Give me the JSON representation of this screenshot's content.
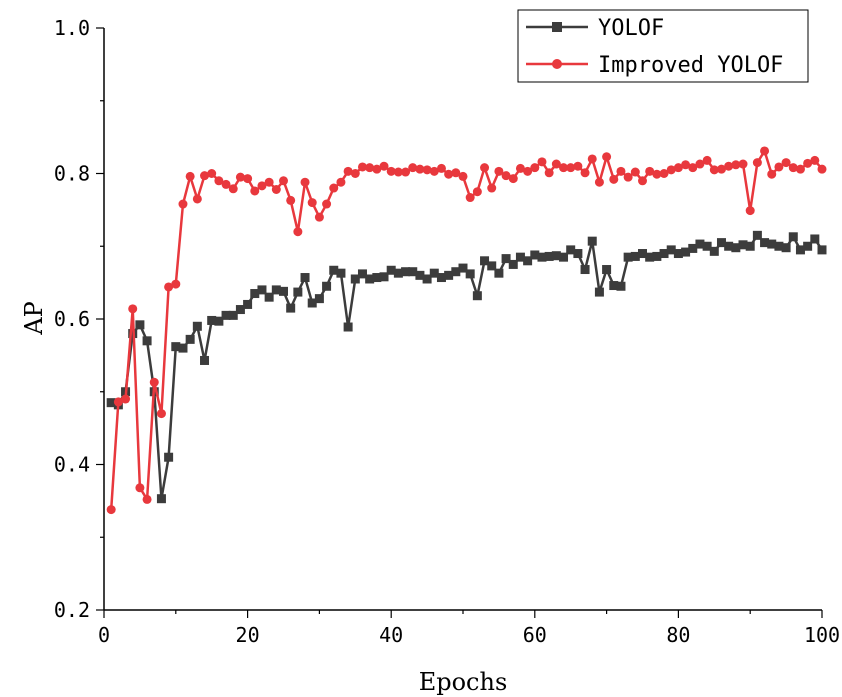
{
  "chart_data": {
    "type": "line",
    "title": "",
    "xlabel": "Epochs",
    "ylabel": "AP",
    "xlim": [
      0,
      100
    ],
    "ylim": [
      0.2,
      1.0
    ],
    "xticks": [
      0,
      20,
      40,
      60,
      80,
      100
    ],
    "xtick_labels": [
      "0",
      "20",
      "40",
      "60",
      "80",
      "100"
    ],
    "yticks": [
      0.2,
      0.4,
      0.6,
      0.8,
      1.0
    ],
    "ytick_labels": [
      "0.2",
      "0.4",
      "0.6",
      "0.8",
      "1.0"
    ],
    "grid": false,
    "legend_position": "top-right",
    "x": [
      1,
      2,
      3,
      4,
      5,
      6,
      7,
      8,
      9,
      10,
      11,
      12,
      13,
      14,
      15,
      16,
      17,
      18,
      19,
      20,
      21,
      22,
      23,
      24,
      25,
      26,
      27,
      28,
      29,
      30,
      31,
      32,
      33,
      34,
      35,
      36,
      37,
      38,
      39,
      40,
      41,
      42,
      43,
      44,
      45,
      46,
      47,
      48,
      49,
      50,
      51,
      52,
      53,
      54,
      55,
      56,
      57,
      58,
      59,
      60,
      61,
      62,
      63,
      64,
      65,
      66,
      67,
      68,
      69,
      70,
      71,
      72,
      73,
      74,
      75,
      76,
      77,
      78,
      79,
      80,
      81,
      82,
      83,
      84,
      85,
      86,
      87,
      88,
      89,
      90,
      91,
      92,
      93,
      94,
      95,
      96,
      97,
      98,
      99,
      100
    ],
    "series": [
      {
        "name": "YOLOF",
        "color": "#3c3c3c",
        "marker": "square",
        "values": [
          0.485,
          0.482,
          0.5,
          0.58,
          0.592,
          0.57,
          0.5,
          0.353,
          0.41,
          0.562,
          0.56,
          0.572,
          0.59,
          0.543,
          0.598,
          0.597,
          0.605,
          0.605,
          0.613,
          0.62,
          0.635,
          0.64,
          0.63,
          0.64,
          0.638,
          0.615,
          0.637,
          0.657,
          0.622,
          0.628,
          0.645,
          0.667,
          0.663,
          0.589,
          0.655,
          0.662,
          0.655,
          0.657,
          0.658,
          0.667,
          0.663,
          0.665,
          0.665,
          0.66,
          0.655,
          0.663,
          0.657,
          0.66,
          0.665,
          0.67,
          0.662,
          0.632,
          0.68,
          0.673,
          0.663,
          0.683,
          0.675,
          0.685,
          0.68,
          0.688,
          0.685,
          0.686,
          0.687,
          0.685,
          0.695,
          0.69,
          0.668,
          0.707,
          0.637,
          0.668,
          0.646,
          0.645,
          0.685,
          0.686,
          0.69,
          0.685,
          0.686,
          0.69,
          0.695,
          0.69,
          0.692,
          0.697,
          0.703,
          0.7,
          0.693,
          0.705,
          0.7,
          0.698,
          0.702,
          0.7,
          0.715,
          0.705,
          0.703,
          0.7,
          0.698,
          0.713,
          0.695,
          0.7,
          0.71,
          0.695
        ]
      },
      {
        "name": "Improved YOLOF",
        "color": "#e8383d",
        "marker": "circle",
        "values": [
          0.338,
          0.486,
          0.49,
          0.614,
          0.368,
          0.352,
          0.513,
          0.47,
          0.644,
          0.648,
          0.758,
          0.796,
          0.765,
          0.797,
          0.8,
          0.79,
          0.785,
          0.779,
          0.795,
          0.793,
          0.776,
          0.783,
          0.788,
          0.778,
          0.79,
          0.763,
          0.72,
          0.788,
          0.76,
          0.74,
          0.758,
          0.78,
          0.788,
          0.803,
          0.8,
          0.809,
          0.808,
          0.806,
          0.81,
          0.803,
          0.802,
          0.802,
          0.808,
          0.806,
          0.805,
          0.803,
          0.807,
          0.799,
          0.801,
          0.796,
          0.767,
          0.775,
          0.808,
          0.78,
          0.803,
          0.797,
          0.793,
          0.807,
          0.803,
          0.808,
          0.816,
          0.801,
          0.813,
          0.808,
          0.808,
          0.81,
          0.801,
          0.82,
          0.788,
          0.823,
          0.792,
          0.803,
          0.795,
          0.802,
          0.79,
          0.803,
          0.799,
          0.8,
          0.805,
          0.808,
          0.812,
          0.808,
          0.813,
          0.818,
          0.805,
          0.806,
          0.81,
          0.812,
          0.813,
          0.749,
          0.815,
          0.831,
          0.799,
          0.809,
          0.815,
          0.808,
          0.806,
          0.814,
          0.818,
          0.806
        ]
      }
    ]
  }
}
